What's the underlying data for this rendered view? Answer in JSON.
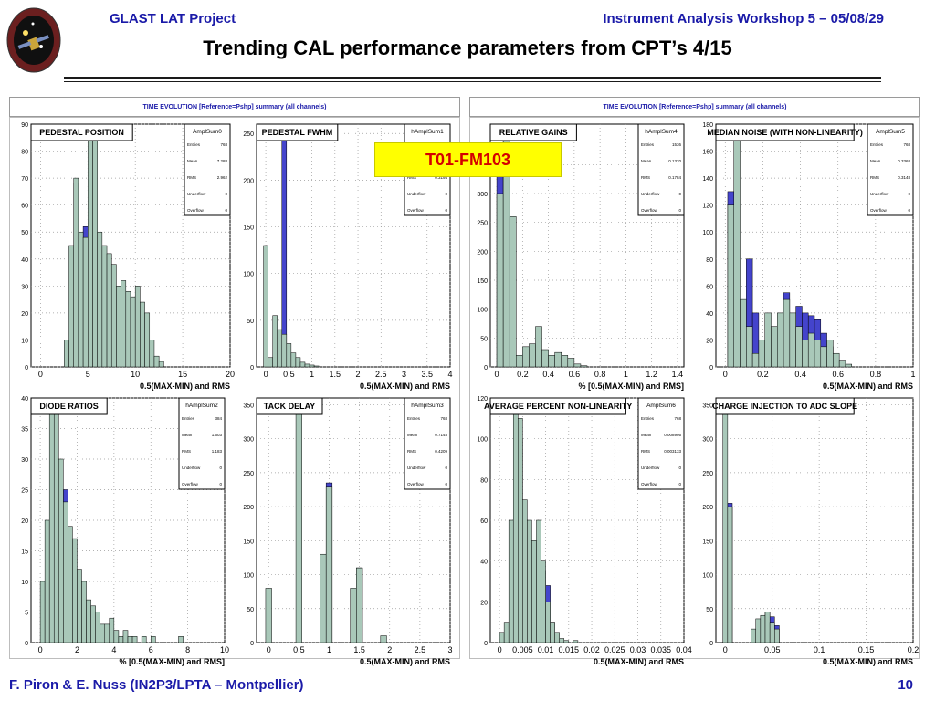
{
  "header": {
    "project": "GLAST LAT Project",
    "workshop": "Instrument Analysis Workshop 5 – 05/08/29",
    "title": "Trending CAL performance parameters from CPT’s 4/15"
  },
  "highlight_label": "T01-FM103",
  "panels": [
    {
      "title": "TIME EVOLUTION [Reference=Pshp] summary (all channels)"
    },
    {
      "title": "TIME EVOLUTION [Reference=Pshp] summary (all channels)"
    }
  ],
  "footer": {
    "authors": "F. Piron & E. Nuss  (IN2P3/LPTA – Montpellier)",
    "page": "10"
  },
  "colors": {
    "header_text": "#1a1aa8",
    "hist_fill": "#a9c8b9",
    "hist_excess": "#4444cc",
    "highlight_bg": "#ffff00",
    "highlight_text": "#d40000"
  },
  "chart_data": [
    {
      "type": "bar",
      "title": "PEDESTAL POSITION",
      "hist_name": "AmplSum0",
      "stats": {
        "Entries": "768",
        "Mean": "7.288",
        "RMS": "2.962",
        "Underflow": "0",
        "Overflow": "0"
      },
      "xlabel": "0.5(MAX-MIN) and RMS",
      "xlim": [
        -1,
        20
      ],
      "ylim": [
        0,
        90
      ],
      "xticks": [
        "0",
        "5",
        "10",
        "15",
        "20"
      ],
      "xtick_values": [
        0,
        5,
        10,
        15,
        20
      ],
      "yticks": [
        "0",
        "10",
        "20",
        "30",
        "40",
        "50",
        "60",
        "70",
        "80",
        "90"
      ],
      "ytick_values": [
        0,
        10,
        20,
        30,
        40,
        50,
        60,
        70,
        80,
        90
      ],
      "bin_start": 2,
      "bin_width": 0.5,
      "series": [
        {
          "values": [
            0,
            10,
            45,
            70,
            50,
            48,
            90,
            88,
            50,
            45,
            42,
            38,
            30,
            32,
            28,
            26,
            30,
            24,
            20,
            10,
            4,
            2,
            0
          ]
        },
        {
          "values": [
            0,
            0,
            0,
            68,
            0,
            52,
            0,
            0,
            0,
            0,
            0,
            0,
            0,
            0,
            0,
            0,
            0,
            0,
            0,
            0,
            0,
            0,
            0
          ]
        }
      ]
    },
    {
      "type": "bar",
      "title": "PEDESTAL FWHM",
      "hist_name": "hAmplSum1",
      "stats": {
        "Entries": "",
        "Mean": "",
        "RMS": "0.3194",
        "Underflow": "0",
        "Overflow": "0"
      },
      "xlabel": "0.5(MAX-MIN) and RMS",
      "xlim": [
        -0.2,
        4
      ],
      "ylim": [
        0,
        260
      ],
      "xticks": [
        "0",
        "0.5",
        "1",
        "1.5",
        "2",
        "2.5",
        "3",
        "3.5",
        "4"
      ],
      "xtick_values": [
        0,
        0.5,
        1,
        1.5,
        2,
        2.5,
        3,
        3.5,
        4
      ],
      "yticks": [
        "0",
        "50",
        "100",
        "150",
        "200",
        "250"
      ],
      "ytick_values": [
        0,
        50,
        100,
        150,
        200,
        250
      ],
      "bin_start": -0.05,
      "bin_width": 0.1,
      "series": [
        {
          "values": [
            130,
            10,
            55,
            40,
            35,
            25,
            15,
            10,
            5,
            3,
            2,
            1,
            0
          ]
        },
        {
          "values": [
            0,
            0,
            0,
            0,
            260,
            0,
            0,
            0,
            0,
            0,
            0,
            0,
            0
          ]
        }
      ]
    },
    {
      "type": "bar",
      "title": "RELATIVE GAINS",
      "hist_name": "hAmplSum4",
      "stats": {
        "Entries": "1536",
        "Mean": "0.1370",
        "RMS": "0.1784",
        "Underflow": "0",
        "Overflow": "0"
      },
      "xlabel": "% [0.5(MAX-MIN) and RMS]",
      "xlim": [
        -0.05,
        1.45
      ],
      "ylim": [
        0,
        420
      ],
      "xticks": [
        "0",
        "0.2",
        "0.4",
        "0.6",
        "0.8",
        "1",
        "1.2",
        "1.4"
      ],
      "xtick_values": [
        0,
        0.2,
        0.4,
        0.6,
        0.8,
        1,
        1.2,
        1.4
      ],
      "yticks": [
        "0",
        "50",
        "100",
        "150",
        "200",
        "250",
        "300",
        "350"
      ],
      "ytick_values": [
        0,
        50,
        100,
        150,
        200,
        250,
        300,
        350
      ],
      "bin_start": 0,
      "bin_width": 0.05,
      "series": [
        {
          "values": [
            300,
            400,
            260,
            20,
            35,
            40,
            70,
            30,
            20,
            25,
            20,
            15,
            5,
            2,
            0
          ]
        },
        {
          "values": [
            340,
            420,
            0,
            0,
            0,
            0,
            0,
            0,
            0,
            0,
            0,
            0,
            0,
            0,
            0
          ]
        }
      ]
    },
    {
      "type": "bar",
      "title": "MEDIAN NOISE (WITH NON-LINEARITY)",
      "hist_name": "AmplSum5",
      "stats": {
        "Entries": "768",
        "Mean": "0.3368",
        "RMS": "0.3148",
        "Underflow": "0",
        "Overflow": "0"
      },
      "xlabel": "0.5(MAX-MIN) and RMS",
      "xlim": [
        -0.05,
        1
      ],
      "ylim": [
        0,
        180
      ],
      "xticks": [
        "0",
        "0.2",
        "0.4",
        "0.6",
        "0.8",
        "1"
      ],
      "xtick_values": [
        0,
        0.2,
        0.4,
        0.6,
        0.8,
        1
      ],
      "yticks": [
        "0",
        "20",
        "40",
        "60",
        "80",
        "100",
        "120",
        "140",
        "160",
        "180"
      ],
      "ytick_values": [
        0,
        20,
        40,
        60,
        80,
        100,
        120,
        140,
        160,
        180
      ],
      "bin_start": -0.02,
      "bin_width": 0.033,
      "series": [
        {
          "values": [
            0,
            120,
            180,
            50,
            30,
            10,
            20,
            40,
            30,
            40,
            50,
            40,
            30,
            20,
            25,
            20,
            15,
            20,
            10,
            5,
            2,
            0,
            0,
            0,
            0,
            0
          ]
        },
        {
          "values": [
            0,
            130,
            0,
            0,
            80,
            40,
            0,
            0,
            0,
            0,
            55,
            0,
            45,
            40,
            38,
            35,
            25,
            15,
            0,
            0,
            0,
            0,
            0,
            0,
            0,
            0
          ]
        }
      ]
    },
    {
      "type": "bar",
      "title": "DIODE RATIOS",
      "hist_name": "hAmplSum2",
      "stats": {
        "Entries": "384",
        "Mean": "1.603",
        "RMS": "1.183",
        "Underflow": "0",
        "Overflow": "0"
      },
      "xlabel": "% [0.5(MAX-MIN) and RMS]",
      "xlim": [
        -0.5,
        10
      ],
      "ylim": [
        0,
        40
      ],
      "xticks": [
        "0",
        "2",
        "4",
        "6",
        "8",
        "10"
      ],
      "xtick_values": [
        0,
        2,
        4,
        6,
        8,
        10
      ],
      "yticks": [
        "0",
        "5",
        "10",
        "15",
        "20",
        "25",
        "30",
        "35",
        "40"
      ],
      "ytick_values": [
        0,
        5,
        10,
        15,
        20,
        25,
        30,
        35,
        40
      ],
      "bin_start": 0,
      "bin_width": 0.25,
      "series": [
        {
          "values": [
            10,
            20,
            40,
            38,
            30,
            23,
            19,
            17,
            12,
            10,
            7,
            6,
            5,
            3,
            3,
            4,
            2,
            1,
            2,
            1,
            1,
            0,
            1,
            0,
            1,
            0,
            0,
            0,
            0,
            0,
            1,
            0,
            0,
            0,
            0,
            0
          ]
        },
        {
          "values": [
            0,
            0,
            0,
            0,
            0,
            25,
            0,
            0,
            0,
            0,
            0,
            0,
            0,
            0,
            0,
            0,
            0,
            0,
            0,
            0,
            0,
            0,
            0,
            0,
            0,
            0,
            0,
            0,
            0,
            0,
            0,
            0,
            0,
            0,
            0,
            0
          ]
        }
      ]
    },
    {
      "type": "bar",
      "title": "TACK DELAY",
      "hist_name": "hAmplSum3",
      "stats": {
        "Entries": "768",
        "Mean": "0.7148",
        "RMS": "0.4209",
        "Underflow": "0",
        "Overflow": "0"
      },
      "xlabel": "0.5(MAX-MIN) and RMS",
      "xlim": [
        -0.2,
        3
      ],
      "ylim": [
        0,
        360
      ],
      "xticks": [
        "0",
        "0.5",
        "1",
        "1.5",
        "2",
        "2.5",
        "3"
      ],
      "xtick_values": [
        0,
        0.5,
        1,
        1.5,
        2,
        2.5,
        3
      ],
      "yticks": [
        "0",
        "50",
        "100",
        "150",
        "200",
        "250",
        "300",
        "350"
      ],
      "ytick_values": [
        0,
        50,
        100,
        150,
        200,
        250,
        300,
        350
      ],
      "bin_start": -0.05,
      "bin_width": 0.1,
      "series": [
        {
          "values": [
            80,
            0,
            0,
            0,
            0,
            360,
            0,
            0,
            0,
            130,
            230,
            0,
            0,
            0,
            80,
            110,
            0,
            0,
            0,
            10,
            0,
            0,
            0,
            0,
            0,
            0,
            0,
            0,
            0,
            0,
            0
          ]
        },
        {
          "values": [
            0,
            0,
            0,
            0,
            0,
            0,
            0,
            0,
            0,
            0,
            235,
            0,
            0,
            0,
            0,
            110,
            0,
            0,
            0,
            0,
            0,
            0,
            0,
            0,
            0,
            0,
            0,
            0,
            0,
            0,
            0
          ]
        }
      ]
    },
    {
      "type": "bar",
      "title": "AVERAGE PERCENT NON-LINEARITY",
      "hist_name": "AmplSum6",
      "stats": {
        "Entries": "768",
        "Mean": "0.008905",
        "RMS": "0.003133",
        "Underflow": "0",
        "Overflow": "0"
      },
      "xlabel": "0.5(MAX-MIN) and RMS",
      "xlim": [
        -0.002,
        0.04
      ],
      "ylim": [
        0,
        120
      ],
      "xticks": [
        "0",
        "0.005",
        "0.01",
        "0.015",
        "0.02",
        "0.025",
        "0.03",
        "0.035",
        "0.04"
      ],
      "xtick_values": [
        0,
        0.005,
        0.01,
        0.015,
        0.02,
        0.025,
        0.03,
        0.035,
        0.04
      ],
      "yticks": [
        "0",
        "20",
        "40",
        "60",
        "80",
        "100",
        "120"
      ],
      "ytick_values": [
        0,
        20,
        40,
        60,
        80,
        100,
        120
      ],
      "bin_start": 0,
      "bin_width": 0.001,
      "series": [
        {
          "values": [
            5,
            10,
            60,
            115,
            110,
            70,
            60,
            50,
            60,
            40,
            20,
            10,
            5,
            2,
            1,
            0,
            1,
            0,
            0,
            0,
            0,
            0,
            0,
            0,
            0,
            0,
            0,
            0,
            0,
            0,
            0,
            0,
            0,
            0,
            0,
            0,
            0,
            0,
            0,
            0
          ]
        },
        {
          "values": [
            0,
            0,
            0,
            0,
            100,
            0,
            0,
            0,
            0,
            35,
            28,
            10,
            0,
            0,
            0,
            0,
            0,
            0,
            0,
            0,
            0,
            0,
            0,
            0,
            0,
            0,
            0,
            0,
            0,
            0,
            0,
            0,
            0,
            0,
            0,
            0,
            0,
            0,
            0,
            0
          ]
        }
      ]
    },
    {
      "type": "bar",
      "title": "CHARGE INJECTION TO ADC SLOPE",
      "hist_name": "",
      "stats": null,
      "xlabel": "0.5(MAX-MIN) and RMS",
      "xlim": [
        -0.01,
        0.2
      ],
      "ylim": [
        0,
        360
      ],
      "xticks": [
        "0",
        "0.05",
        "0.1",
        "0.15",
        "0.2"
      ],
      "xtick_values": [
        0,
        0.05,
        0.1,
        0.15,
        0.2
      ],
      "yticks": [
        "0",
        "50",
        "100",
        "150",
        "200",
        "250",
        "300",
        "350"
      ],
      "ytick_values": [
        0,
        50,
        100,
        150,
        200,
        250,
        300,
        350
      ],
      "bin_start": -0.0025,
      "bin_width": 0.005,
      "series": [
        {
          "values": [
            360,
            200,
            0,
            0,
            0,
            0,
            20,
            35,
            40,
            45,
            30,
            20,
            0,
            0,
            0,
            0,
            0,
            0,
            0,
            0,
            0,
            0,
            0,
            0,
            0,
            0,
            0,
            0,
            0,
            0,
            0,
            0,
            0,
            0,
            0,
            0,
            0,
            0,
            0,
            0,
            0
          ]
        },
        {
          "values": [
            0,
            205,
            0,
            0,
            0,
            0,
            0,
            0,
            0,
            45,
            38,
            25,
            0,
            0,
            0,
            0,
            0,
            0,
            0,
            0,
            0,
            0,
            0,
            0,
            0,
            0,
            0,
            0,
            0,
            0,
            0,
            0,
            0,
            0,
            0,
            0,
            0,
            0,
            0,
            0,
            0
          ]
        }
      ]
    }
  ]
}
